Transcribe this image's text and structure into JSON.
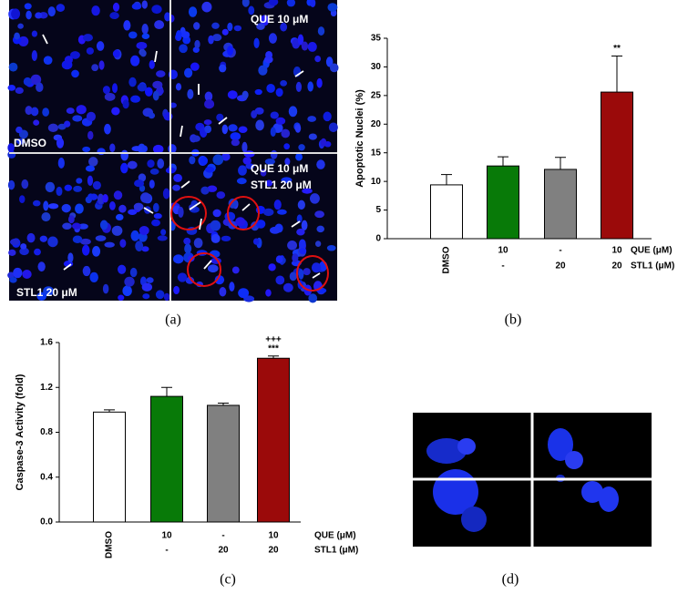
{
  "panels": {
    "a": {
      "label": "(a)",
      "texts": [
        "QUE 10 μM",
        "DMSO",
        "QUE 10 μM",
        "STL1 20 μM",
        "STL1 20 μM"
      ]
    },
    "b": {
      "label": "(b)"
    },
    "c": {
      "label": "(c)"
    },
    "d": {
      "label": "(d)"
    }
  },
  "chart_data": [
    {
      "type": "bar",
      "y_label": "Apoptotic Nuclei (%)",
      "categories": [
        "DMSO",
        "10",
        "-",
        "10"
      ],
      "categories2": [
        null,
        "-",
        "20",
        "20"
      ],
      "row_labels": [
        "QUE (μM)",
        "STL1 (μM)"
      ],
      "values": [
        9.4,
        12.7,
        12.1,
        25.6
      ],
      "errors": [
        1.8,
        1.6,
        2.1,
        6.3
      ],
      "colors": [
        "#ffffff",
        "#087a08",
        "#808080",
        "#9b0a0a"
      ],
      "annotations": [
        null,
        null,
        null,
        "**"
      ],
      "ylim": [
        0,
        35
      ],
      "yticks": [
        0,
        5,
        10,
        15,
        20,
        25,
        30,
        35
      ]
    },
    {
      "type": "bar",
      "y_label": "Caspase-3 Activity (fold)",
      "categories": [
        "DMSO",
        "10",
        "-",
        "10"
      ],
      "categories2": [
        null,
        "-",
        "20",
        "20"
      ],
      "row_labels": [
        "QUE (μM)",
        "STL1 (μM)"
      ],
      "values": [
        0.98,
        1.12,
        1.04,
        1.46
      ],
      "errors": [
        0.02,
        0.08,
        0.02,
        0.02
      ],
      "colors": [
        "#ffffff",
        "#087a08",
        "#808080",
        "#9b0a0a"
      ],
      "annotations": [
        null,
        null,
        null,
        "***"
      ],
      "annotations2": [
        null,
        null,
        null,
        "+++"
      ],
      "ylim": [
        0,
        1.6
      ],
      "yticks": [
        {
          "value": 0,
          "label": "0.0"
        },
        0.4,
        0.8,
        1.2,
        1.6
      ]
    }
  ]
}
